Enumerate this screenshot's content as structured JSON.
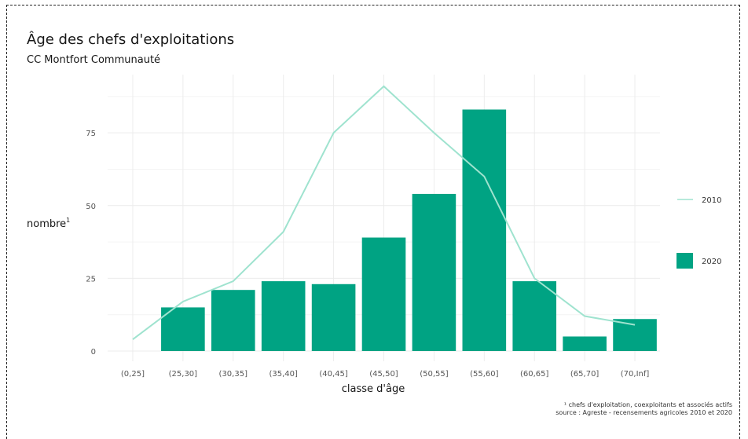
{
  "title": "Âge des chefs d'exploitations",
  "subtitle": "CC Montfort Communauté",
  "colors": {
    "bars_2020": "#00a383",
    "line_2010": "#9fe3cf",
    "grid": "#ececec"
  },
  "caption": {
    "line1": "¹ chefs d'exploitation, coexploitants et associés actifs",
    "line2": "source : Agreste - recensements agricoles 2010 et 2020"
  },
  "chart_data": {
    "type": "bar",
    "title": "Âge des chefs d'exploitations",
    "subtitle": "CC Montfort Communauté",
    "xlabel": "classe d'âge",
    "ylabel": "nombre",
    "ylabel_sup": "1",
    "categories": [
      "(0,25]",
      "(25,30]",
      "(30,35]",
      "(35,40]",
      "(40,45]",
      "(45,50]",
      "(50,55]",
      "(55,60]",
      "(60,65]",
      "(65,70]",
      "(70,Inf]"
    ],
    "series": [
      {
        "name": "2020",
        "type": "bar",
        "values": [
          0,
          15,
          21,
          24,
          23,
          39,
          54,
          83,
          24,
          5,
          11
        ]
      },
      {
        "name": "2010",
        "type": "line",
        "values": [
          4,
          17,
          24,
          41,
          75,
          91,
          75,
          60,
          25,
          12,
          9
        ]
      }
    ],
    "ylim": [
      0,
      100
    ],
    "yticks": [
      0,
      25,
      50,
      75
    ],
    "grid": true,
    "legend": {
      "position": "right",
      "entries": [
        "2010",
        "2020"
      ]
    }
  }
}
